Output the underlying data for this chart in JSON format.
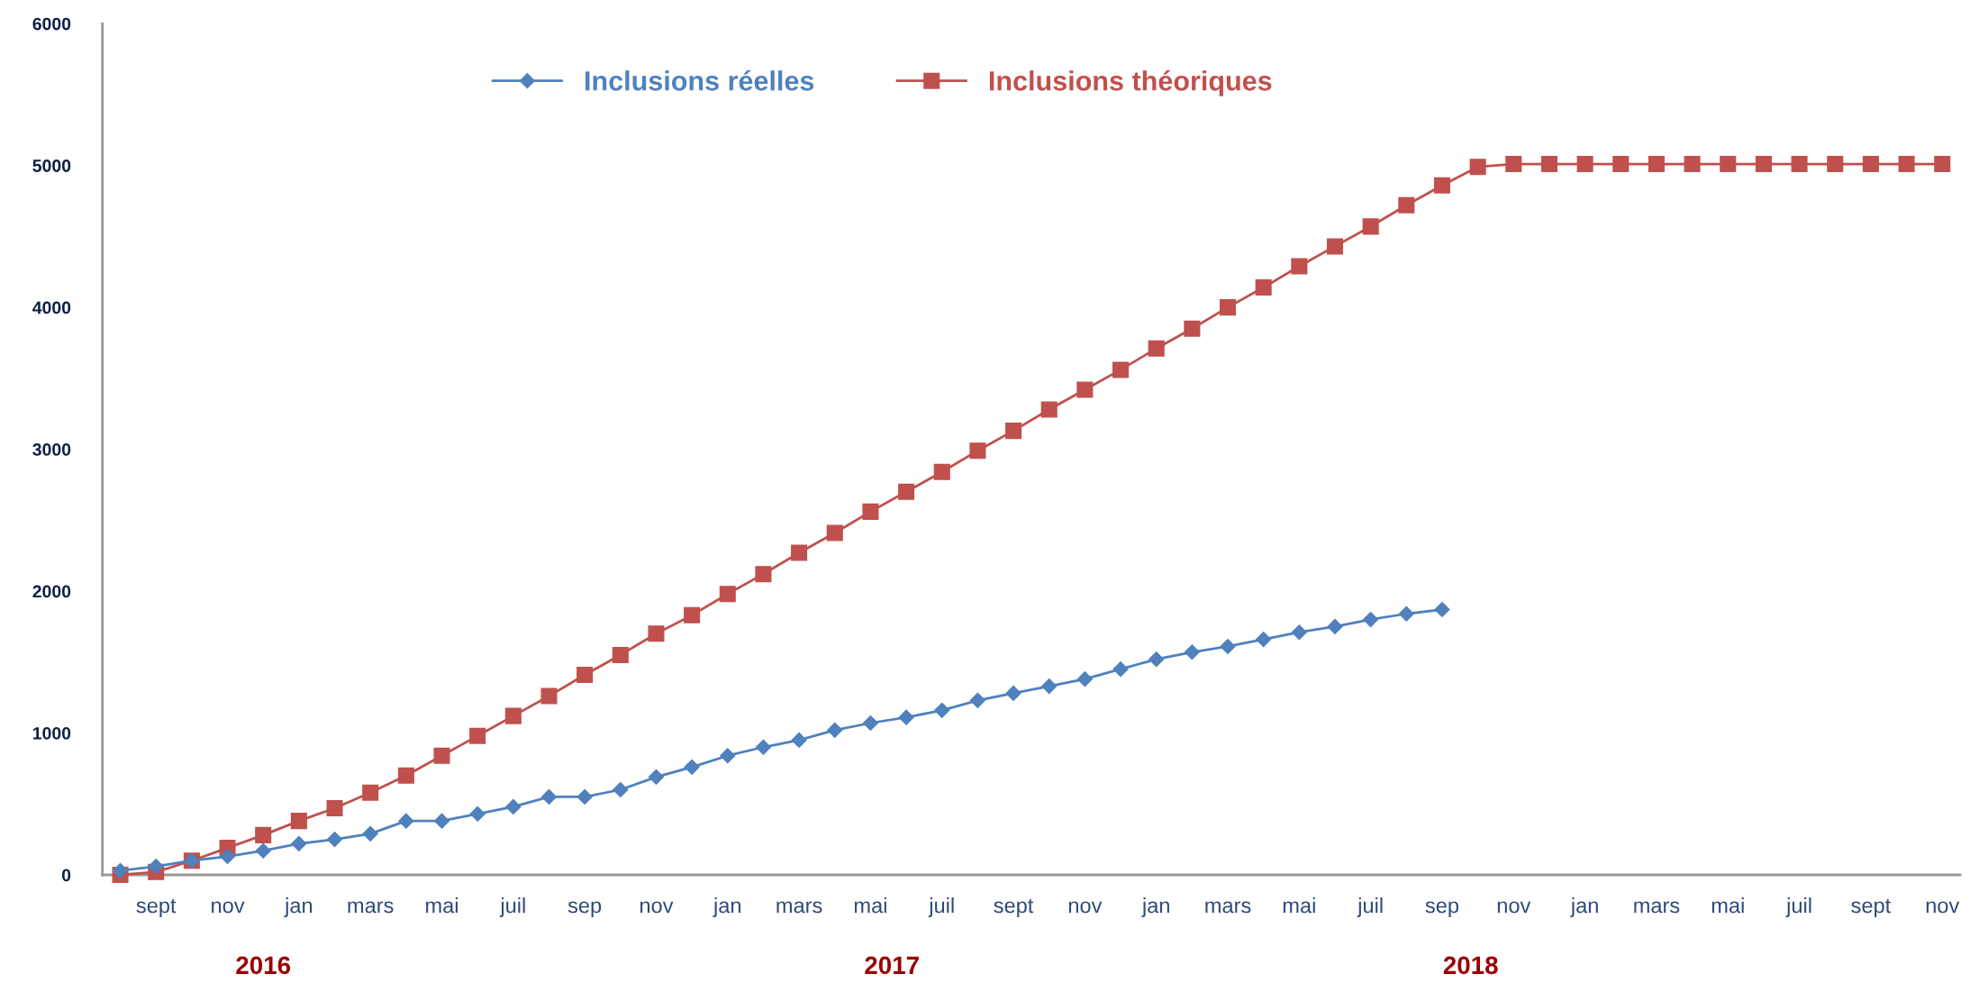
{
  "chart_data": {
    "type": "line",
    "categories": [
      null,
      "sept",
      null,
      "nov",
      null,
      "jan",
      null,
      "mars",
      null,
      "mai",
      null,
      "juil",
      null,
      "sep",
      null,
      "nov",
      null,
      "jan",
      null,
      "mars",
      null,
      "mai",
      null,
      "juil",
      null,
      "sept",
      null,
      "nov",
      null,
      "jan",
      null,
      "mars",
      null,
      "mai",
      null,
      "juil",
      null,
      "sep",
      null,
      "nov",
      null,
      "jan",
      null,
      "mars",
      null,
      "mai",
      null,
      "juil",
      null,
      "sept",
      null,
      "nov"
    ],
    "series": [
      {
        "name": "Inclusions réelles",
        "color": "#4f81bd",
        "marker": "diamond",
        "values": [
          30,
          60,
          100,
          130,
          170,
          220,
          250,
          290,
          380,
          380,
          430,
          480,
          550,
          550,
          600,
          690,
          760,
          840,
          900,
          950,
          1020,
          1070,
          1110,
          1160,
          1230,
          1280,
          1330,
          1380,
          1450,
          1520,
          1570,
          1610,
          1660,
          1710,
          1750,
          1800,
          1840,
          1870,
          null,
          null,
          null,
          null,
          null,
          null,
          null,
          null,
          null,
          null,
          null,
          null,
          null,
          null
        ]
      },
      {
        "name": "Inclusions théoriques",
        "color": "#c0504d",
        "marker": "square",
        "values": [
          0,
          20,
          100,
          190,
          280,
          380,
          470,
          580,
          700,
          840,
          980,
          1120,
          1260,
          1410,
          1550,
          1700,
          1830,
          1980,
          2120,
          2270,
          2410,
          2560,
          2700,
          2840,
          2990,
          3130,
          3280,
          3420,
          3560,
          3710,
          3850,
          4000,
          4140,
          4290,
          4430,
          4570,
          4720,
          4860,
          4990,
          5010,
          5010,
          5010,
          5010,
          5010,
          5010,
          5010,
          5010,
          5010,
          5010,
          5010,
          5010,
          5010
        ]
      }
    ],
    "ylim": [
      0,
      6000
    ],
    "yticks": [
      0,
      1000,
      2000,
      3000,
      4000,
      5000,
      6000
    ],
    "annotations": [
      "2016",
      "2017",
      "2018"
    ],
    "grid": false,
    "legend": "top",
    "line_style": "solid"
  }
}
